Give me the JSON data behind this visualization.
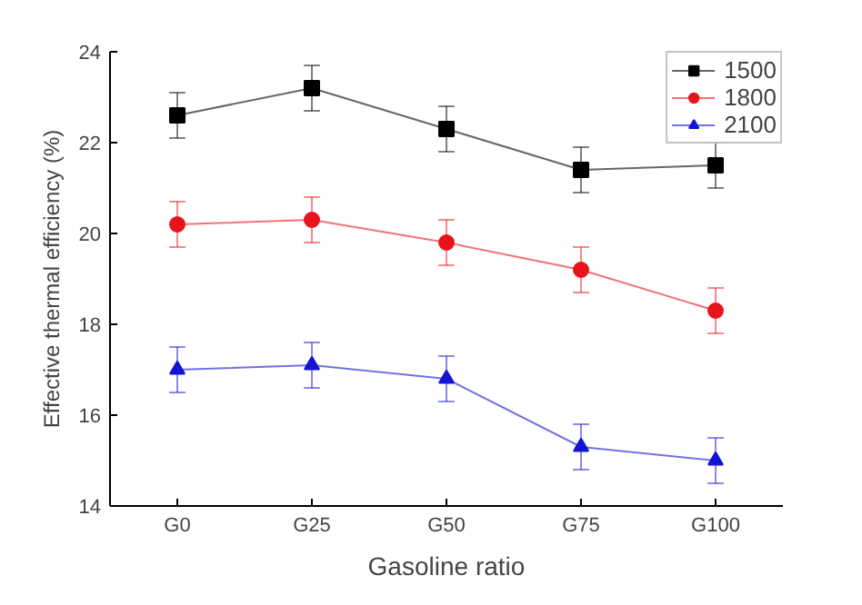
{
  "chart_data": {
    "type": "line",
    "xlabel": "Gasoline ratio",
    "ylabel": "Effective thermal efficiency (%)",
    "categories": [
      "G0",
      "G25",
      "G50",
      "G75",
      "G100"
    ],
    "series": [
      {
        "name": "1500",
        "color": "#000000",
        "marker": "square",
        "values": [
          22.6,
          23.2,
          22.3,
          21.4,
          21.5
        ],
        "errors": [
          0.5,
          0.5,
          0.5,
          0.5,
          0.5
        ]
      },
      {
        "name": "1800",
        "color": "#e8141c",
        "marker": "circle",
        "values": [
          20.2,
          20.3,
          19.8,
          19.2,
          18.3
        ],
        "errors": [
          0.5,
          0.5,
          0.5,
          0.5,
          0.5
        ]
      },
      {
        "name": "2100",
        "color": "#1414d2",
        "marker": "triangle",
        "values": [
          17.0,
          17.1,
          16.8,
          15.3,
          15.0
        ],
        "errors": [
          0.5,
          0.5,
          0.5,
          0.5,
          0.5
        ]
      }
    ],
    "ylim": [
      14,
      24
    ],
    "yticks": [
      14,
      16,
      18,
      20,
      22,
      24
    ],
    "grid": false,
    "legend": "top right",
    "line_style": "solid"
  }
}
